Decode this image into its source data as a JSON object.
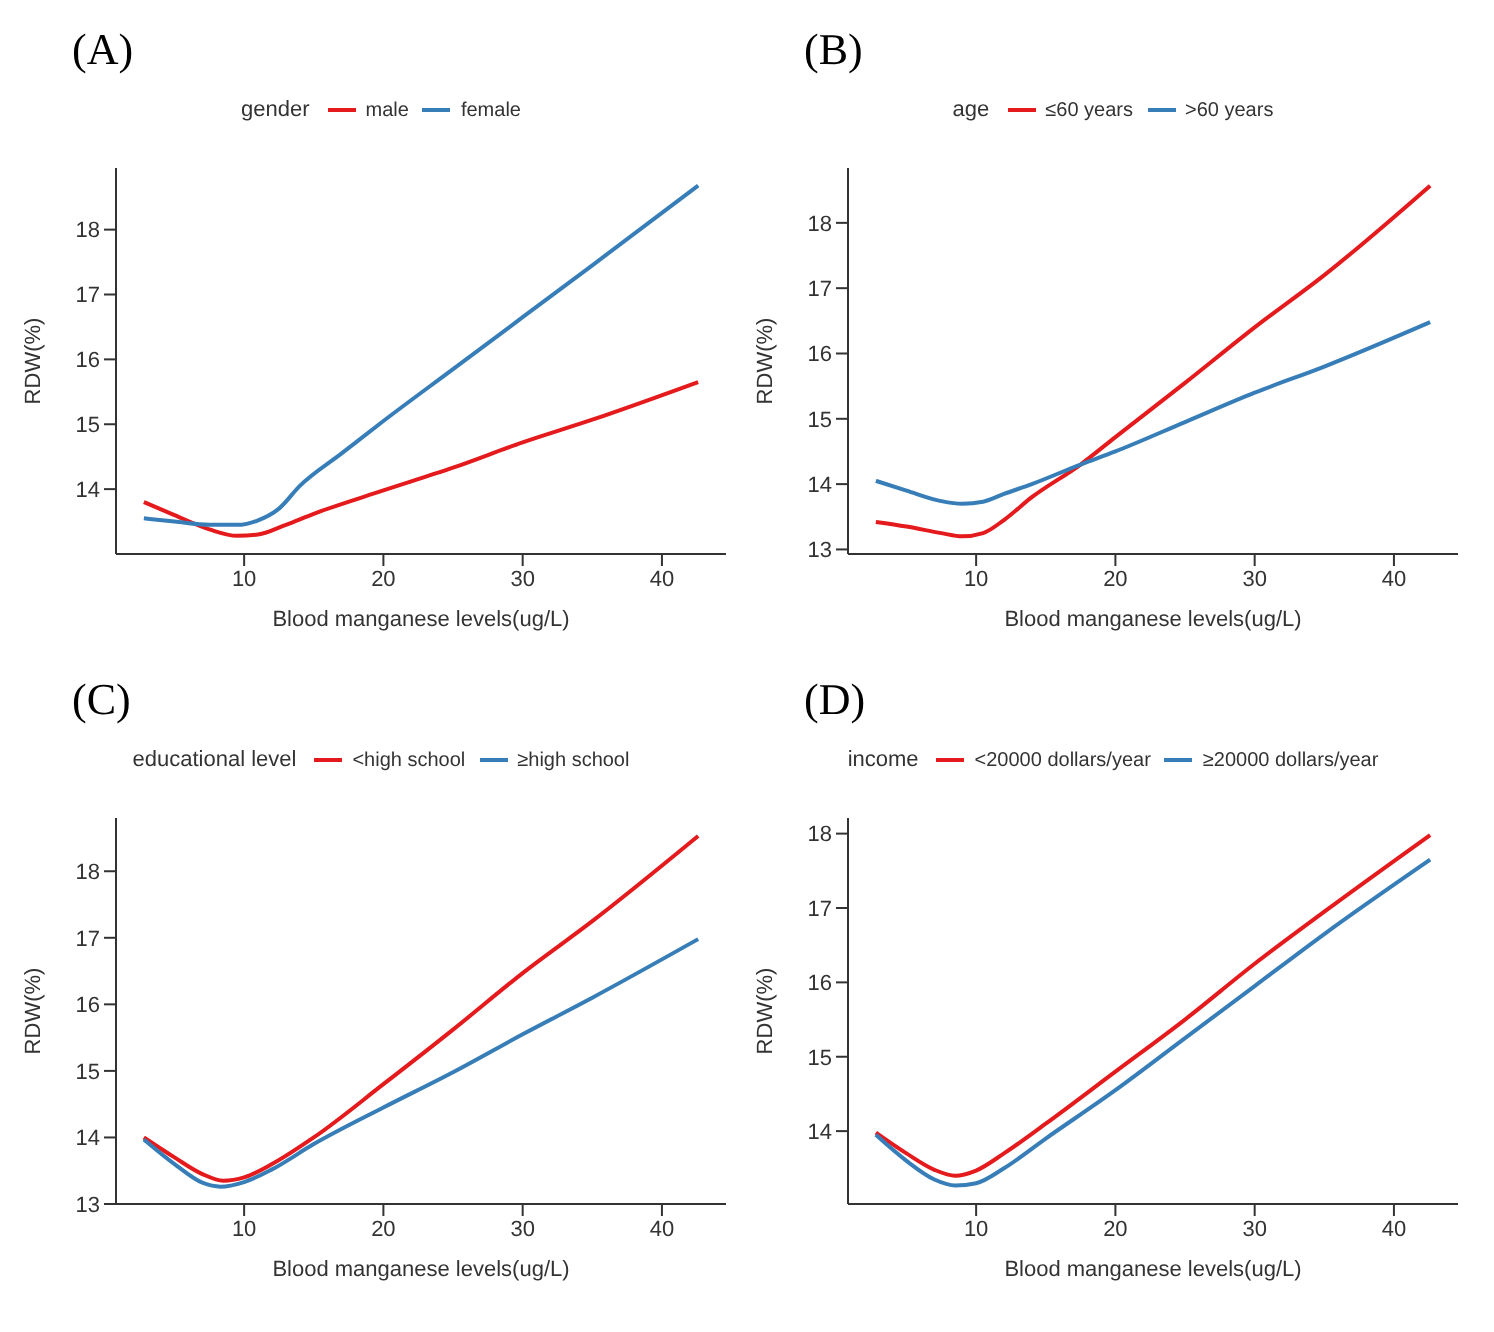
{
  "chart_data": [
    {
      "type": "line",
      "title": "(A)",
      "xlabel": "Blood manganese levels(ug/L)",
      "ylabel": "RDW(%)",
      "legend_title": "gender",
      "legend": "top",
      "xlim": [
        0.8,
        44.6
      ],
      "xticks": [
        10,
        20,
        30,
        40
      ],
      "ylim": [
        13.0,
        18.95
      ],
      "yticks": [
        14,
        15,
        16,
        17,
        18
      ],
      "series": [
        {
          "name": "male",
          "color": "#e41a1c",
          "x": [
            2.8,
            5,
            7.5,
            9.5,
            11,
            13,
            15,
            20,
            25,
            30,
            35,
            42.6
          ],
          "values": [
            13.8,
            13.6,
            13.38,
            13.28,
            13.3,
            13.45,
            13.62,
            13.98,
            14.33,
            14.72,
            15.07,
            15.65
          ]
        },
        {
          "name": "female",
          "color": "#377eb8",
          "x": [
            2.8,
            5,
            7.5,
            9.5,
            11,
            12.5,
            14,
            17,
            20,
            25,
            30,
            35,
            42.6
          ],
          "values": [
            13.55,
            13.5,
            13.45,
            13.45,
            13.52,
            13.7,
            14.05,
            14.55,
            15.05,
            15.85,
            16.65,
            17.45,
            18.68
          ]
        }
      ]
    },
    {
      "type": "line",
      "title": "(B)",
      "xlabel": "Blood manganese levels(ug/L)",
      "ylabel": "RDW(%)",
      "legend_title": "age",
      "legend": "top",
      "xlim": [
        0.8,
        44.6
      ],
      "xticks": [
        10,
        20,
        30,
        40
      ],
      "ylim": [
        12.93,
        18.84
      ],
      "yticks": [
        13,
        14,
        15,
        16,
        17,
        18
      ],
      "series": [
        {
          "name": "≤60 years",
          "color": "#e41a1c",
          "x": [
            2.8,
            5,
            7.5,
            9,
            10.5,
            12,
            14,
            17.5,
            20,
            25,
            30,
            35,
            42.6
          ],
          "values": [
            13.42,
            13.35,
            13.25,
            13.2,
            13.25,
            13.45,
            13.8,
            14.3,
            14.72,
            15.55,
            16.4,
            17.2,
            18.57
          ]
        },
        {
          "name": ">60 years",
          "color": "#377eb8",
          "x": [
            2.8,
            5,
            7.5,
            9,
            10.5,
            12,
            14,
            17.5,
            20,
            25,
            30,
            35,
            42.6
          ],
          "values": [
            14.05,
            13.9,
            13.74,
            13.7,
            13.73,
            13.85,
            14.0,
            14.3,
            14.5,
            14.95,
            15.4,
            15.8,
            16.48
          ]
        }
      ]
    },
    {
      "type": "line",
      "title": "(C)",
      "xlabel": "Blood manganese levels(ug/L)",
      "ylabel": "RDW(%)",
      "legend_title": "educational level",
      "legend": "top",
      "xlim": [
        0.8,
        44.6
      ],
      "xticks": [
        10,
        20,
        30,
        40
      ],
      "ylim": [
        13.0,
        18.8
      ],
      "yticks": [
        13,
        14,
        15,
        16,
        17,
        18
      ],
      "series": [
        {
          "name": "<high school",
          "color": "#e41a1c",
          "x": [
            2.8,
            5,
            7,
            8.5,
            10,
            12,
            15,
            20,
            25,
            30,
            35,
            42.6
          ],
          "values": [
            14.0,
            13.7,
            13.45,
            13.35,
            13.4,
            13.6,
            14.0,
            14.8,
            15.62,
            16.47,
            17.25,
            18.53
          ]
        },
        {
          "name": "≥high school",
          "color": "#377eb8",
          "x": [
            2.8,
            5,
            7,
            8.3,
            10,
            12,
            15,
            20,
            25,
            30,
            35,
            42.6
          ],
          "values": [
            13.97,
            13.6,
            13.32,
            13.26,
            13.33,
            13.52,
            13.9,
            14.45,
            14.98,
            15.55,
            16.1,
            16.98
          ]
        }
      ]
    },
    {
      "type": "line",
      "title": "(D)",
      "xlabel": "Blood manganese levels(ug/L)",
      "ylabel": "RDW(%)",
      "legend_title": "income",
      "legend": "top",
      "xlim": [
        0.8,
        44.6
      ],
      "xticks": [
        10,
        20,
        30,
        40
      ],
      "ylim": [
        13.02,
        18.21
      ],
      "yticks": [
        14,
        15,
        16,
        17,
        18
      ],
      "series": [
        {
          "name": "<20000 dollars/year",
          "color": "#e41a1c",
          "x": [
            2.8,
            5,
            7,
            8.5,
            10,
            12,
            15,
            20,
            25,
            30,
            35,
            42.6
          ],
          "values": [
            13.98,
            13.7,
            13.48,
            13.4,
            13.47,
            13.7,
            14.1,
            14.8,
            15.5,
            16.25,
            16.95,
            17.98
          ]
        },
        {
          "name": "≥20000 dollars/year",
          "color": "#377eb8",
          "x": [
            2.8,
            5,
            7,
            8.5,
            10,
            12,
            15,
            20,
            25,
            30,
            35,
            42.6
          ],
          "values": [
            13.95,
            13.6,
            13.35,
            13.27,
            13.3,
            13.5,
            13.9,
            14.55,
            15.25,
            15.95,
            16.65,
            17.65
          ]
        }
      ]
    }
  ]
}
